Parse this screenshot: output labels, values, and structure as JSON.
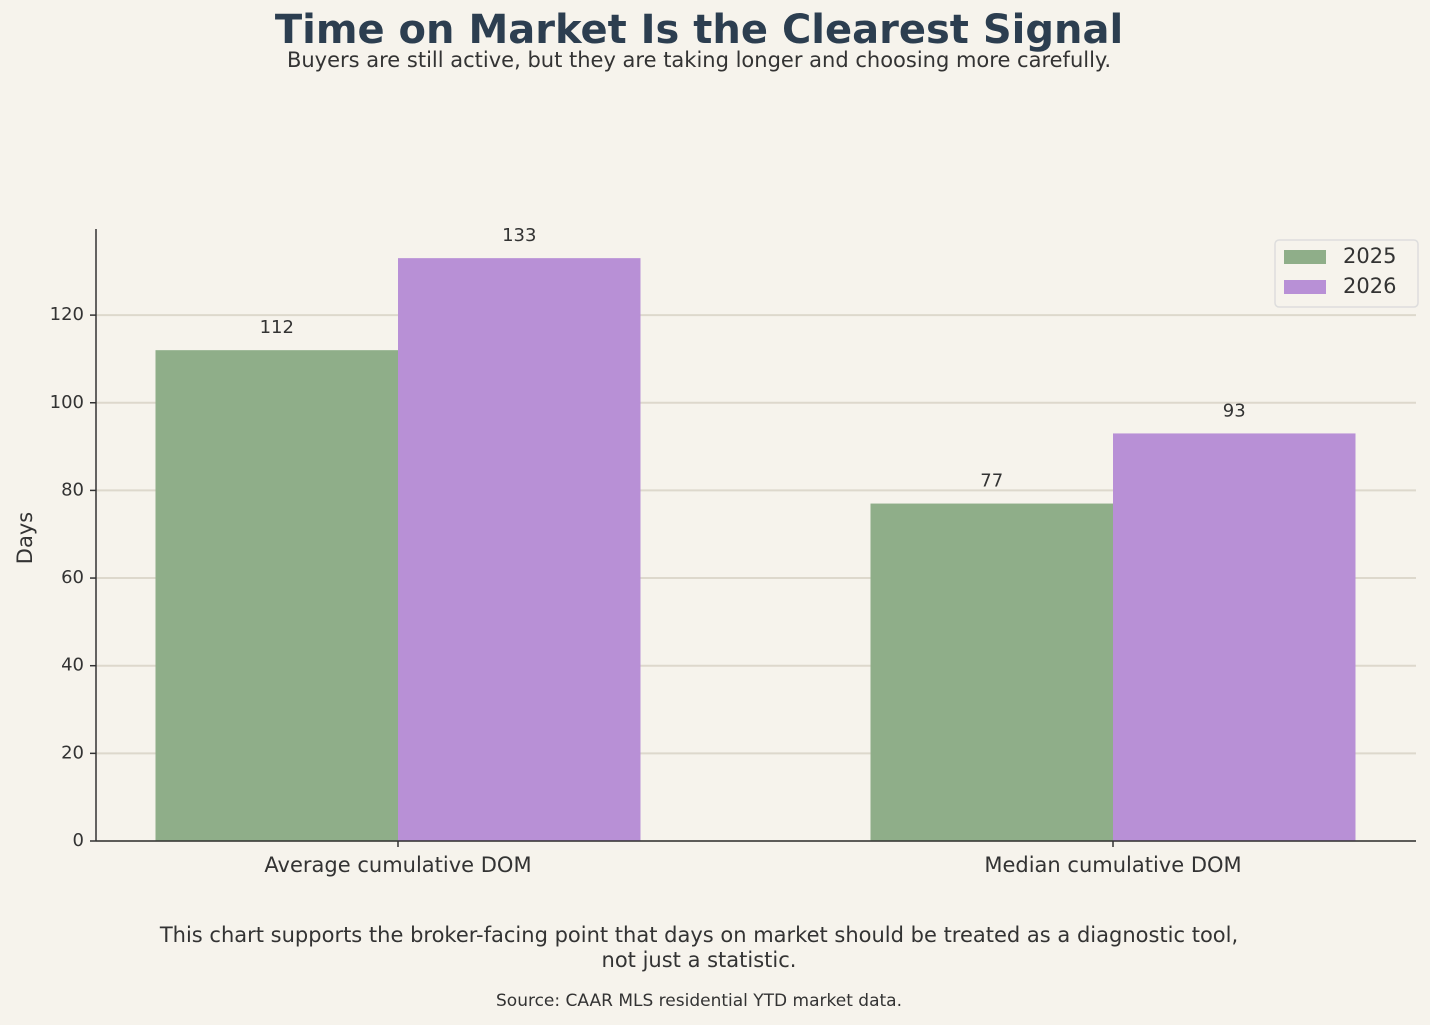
{
  "chart_data": {
    "type": "bar",
    "title": "Time on Market Is the Clearest Signal",
    "subtitle": "Buyers are still active, but they are taking longer and choosing more carefully.",
    "y_label": "Days",
    "categories": [
      "Average cumulative DOM",
      "Median cumulative DOM"
    ],
    "series": [
      {
        "name": "2025",
        "color": "#8fae89",
        "values": [
          112,
          77
        ]
      },
      {
        "name": "2026",
        "color": "#b890d6",
        "values": [
          133,
          93
        ]
      }
    ],
    "ylim": [
      0,
      139.65
    ],
    "yticks": [
      0,
      20,
      40,
      60,
      80,
      100,
      120
    ],
    "grid": true,
    "legend": "upper-right",
    "note": [
      "This chart supports the broker-facing point that days on market should be treated as a diagnostic tool,",
      "not just a statistic."
    ],
    "source": "Source: CAAR MLS residential YTD market data."
  }
}
